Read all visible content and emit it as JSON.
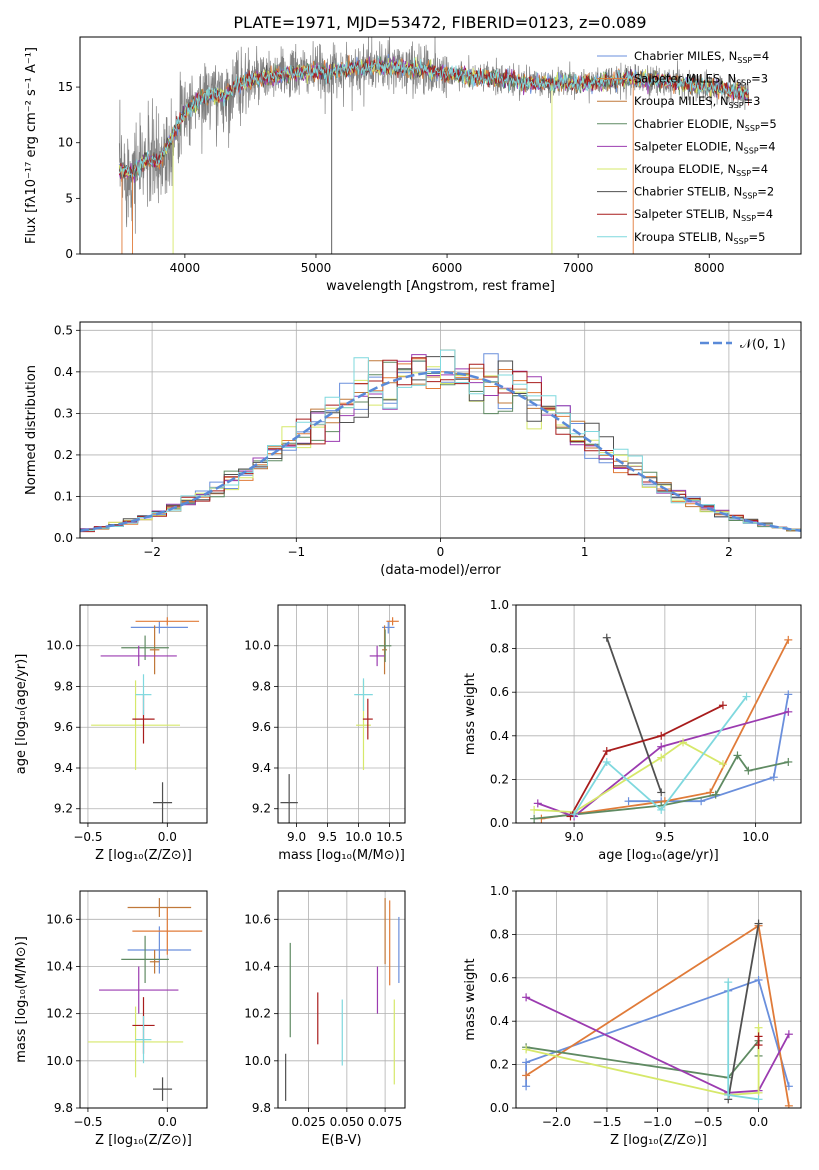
{
  "figure_title": "PLATE=1971, MJD=53472, FIBERID=0123, z=0.089",
  "colors": {
    "Chabrier MILES": "#6a8fdc",
    "Salpeter MILES": "#e07b39",
    "Kroupa MILES": "#c0783a",
    "Chabrier ELODIE": "#5f8a62",
    "Salpeter ELODIE": "#9b3bb0",
    "Kroupa ELODIE": "#d6e86a",
    "Chabrier STELIB": "#505050",
    "Salpeter STELIB": "#a81c1c",
    "Kroupa STELIB": "#7fd8de",
    "data": "#808080",
    "normal": "#5a8ad8"
  },
  "chart_data": [
    {
      "id": "spectrum",
      "type": "line",
      "xlabel": "wavelength [Angstrom, rest frame]",
      "ylabel": "Flux [fλ10⁻¹⁷ erg cm⁻² s⁻¹ A⁻¹]",
      "xlim": [
        3200,
        8700
      ],
      "ylim": [
        0,
        19.5
      ],
      "xticks": [
        4000,
        5000,
        6000,
        7000,
        8000
      ],
      "yticks": [
        0,
        5,
        10,
        15
      ],
      "legend_position": "top-right",
      "legend": [
        {
          "label": "Chabrier MILES, N",
          "sub": "SSP",
          "suffix": "=4",
          "model": "Chabrier MILES"
        },
        {
          "label": "Salpeter MILES, N",
          "sub": "SSP",
          "suffix": "=3",
          "model": "Salpeter MILES"
        },
        {
          "label": "Kroupa MILES, N",
          "sub": "SSP",
          "suffix": "=3",
          "model": "Kroupa MILES"
        },
        {
          "label": "Chabrier ELODIE, N",
          "sub": "SSP",
          "suffix": "=5",
          "model": "Chabrier ELODIE"
        },
        {
          "label": "Salpeter ELODIE, N",
          "sub": "SSP",
          "suffix": "=4",
          "model": "Salpeter ELODIE"
        },
        {
          "label": "Kroupa ELODIE, N",
          "sub": "SSP",
          "suffix": "=4",
          "model": "Kroupa ELODIE"
        },
        {
          "label": "Chabrier STELIB, N",
          "sub": "SSP",
          "suffix": "=2",
          "model": "Chabrier STELIB"
        },
        {
          "label": "Salpeter STELIB, N",
          "sub": "SSP",
          "suffix": "=4",
          "model": "Salpeter STELIB"
        },
        {
          "label": "Kroupa STELIB, N",
          "sub": "SSP",
          "suffix": "=5",
          "model": "Kroupa STELIB"
        }
      ],
      "continuum": [
        [
          3500,
          7.5
        ],
        [
          3600,
          7.2
        ],
        [
          3700,
          8.5
        ],
        [
          3800,
          8.2
        ],
        [
          3900,
          10.5
        ],
        [
          4000,
          12.8
        ],
        [
          4100,
          13.8
        ],
        [
          4200,
          14.3
        ],
        [
          4300,
          14.1
        ],
        [
          4400,
          15.2
        ],
        [
          4500,
          15.6
        ],
        [
          4600,
          15.8
        ],
        [
          4700,
          16.0
        ],
        [
          4800,
          16.2
        ],
        [
          4900,
          16.3
        ],
        [
          5000,
          16.4
        ],
        [
          5100,
          16.2
        ],
        [
          5200,
          16.6
        ],
        [
          5300,
          16.7
        ],
        [
          5400,
          16.8
        ],
        [
          5500,
          16.8
        ],
        [
          5600,
          16.8
        ],
        [
          5700,
          16.7
        ],
        [
          5800,
          16.6
        ],
        [
          5900,
          16.4
        ],
        [
          6000,
          16.2
        ],
        [
          6100,
          16.1
        ],
        [
          6200,
          15.9
        ],
        [
          6300,
          15.8
        ],
        [
          6400,
          15.7
        ],
        [
          6500,
          15.6
        ],
        [
          6600,
          15.4
        ],
        [
          6700,
          15.3
        ],
        [
          6800,
          15.3
        ],
        [
          6900,
          15.5
        ],
        [
          7000,
          15.3
        ],
        [
          7200,
          15.5
        ],
        [
          7400,
          15.8
        ],
        [
          7600,
          15.6
        ],
        [
          7800,
          15.3
        ],
        [
          8000,
          15.0
        ],
        [
          8200,
          14.6
        ],
        [
          8300,
          14.4
        ]
      ]
    },
    {
      "id": "residuals",
      "type": "histogram",
      "xlabel": "(data-model)/error",
      "ylabel": "Normed distribution",
      "xlim": [
        -2.5,
        2.5
      ],
      "ylim": [
        0,
        0.52
      ],
      "xticks": [
        -2,
        -1,
        0,
        1,
        2
      ],
      "yticks": [
        0.0,
        0.1,
        0.2,
        0.3,
        0.4,
        0.5
      ],
      "grid": true,
      "legend_position": "top-right",
      "legend": [
        {
          "label": "𝒩(0, 1)",
          "style": "dashed"
        }
      ],
      "bin_width": 0.1
    },
    {
      "id": "age_vs_Z",
      "type": "scatter",
      "xlabel": "Z [log₁₀(Z/Z⊙)]",
      "ylabel": "age  [log₁₀(age/yr)]",
      "xlim": [
        -0.55,
        0.25
      ],
      "ylim": [
        9.13,
        10.2
      ],
      "xticks": [
        -0.5,
        0.0
      ],
      "yticks": [
        9.2,
        9.4,
        9.6,
        9.8,
        10.0
      ],
      "grid": true,
      "points": [
        {
          "model": "Chabrier MILES",
          "x": -0.05,
          "xerr": 0.18,
          "y": 10.09,
          "yerr": 0.03
        },
        {
          "model": "Salpeter MILES",
          "x": 0.0,
          "xerr": 0.2,
          "y": 10.12,
          "yerr": 0.02
        },
        {
          "model": "Kroupa MILES",
          "x": -0.08,
          "xerr": 0.03,
          "y": 9.98,
          "yerr": 0.12
        },
        {
          "model": "Chabrier ELODIE",
          "x": -0.14,
          "xerr": 0.15,
          "y": 9.99,
          "yerr": 0.06
        },
        {
          "model": "Salpeter ELODIE",
          "x": -0.18,
          "xerr": 0.24,
          "y": 9.95,
          "yerr": 0.05
        },
        {
          "model": "Kroupa ELODIE",
          "x": -0.2,
          "xerr": 0.28,
          "y": 9.61,
          "yerr": 0.22
        },
        {
          "model": "Chabrier STELIB",
          "x": -0.03,
          "xerr": 0.06,
          "y": 9.23,
          "yerr": 0.1
        },
        {
          "model": "Salpeter STELIB",
          "x": -0.15,
          "xerr": 0.07,
          "y": 9.64,
          "yerr": 0.12
        },
        {
          "model": "Kroupa STELIB",
          "x": -0.15,
          "xerr": 0.05,
          "y": 9.76,
          "yerr": 0.1
        }
      ]
    },
    {
      "id": "age_vs_mass",
      "type": "scatter",
      "xlabel": "mass [log₁₀(M/M⊙)]",
      "xlim": [
        8.7,
        10.75
      ],
      "ylim": [
        9.13,
        10.2
      ],
      "xticks": [
        9.0,
        9.5,
        10.0,
        10.5
      ],
      "yticks": [
        9.2,
        9.4,
        9.6,
        9.8,
        10.0
      ],
      "grid": true,
      "points": [
        {
          "model": "Chabrier MILES",
          "x": 10.48,
          "xerr": 0.1,
          "y": 10.09,
          "yerr": 0.03
        },
        {
          "model": "Salpeter MILES",
          "x": 10.55,
          "xerr": 0.1,
          "y": 10.12,
          "yerr": 0.02
        },
        {
          "model": "Kroupa MILES",
          "x": 10.42,
          "xerr": 0.04,
          "y": 9.98,
          "yerr": 0.12
        },
        {
          "model": "Chabrier ELODIE",
          "x": 10.43,
          "xerr": 0.1,
          "y": 10.0,
          "yerr": 0.08
        },
        {
          "model": "Salpeter ELODIE",
          "x": 10.3,
          "xerr": 0.12,
          "y": 9.95,
          "yerr": 0.05
        },
        {
          "model": "Kroupa ELODIE",
          "x": 10.08,
          "xerr": 0.12,
          "y": 9.61,
          "yerr": 0.22
        },
        {
          "model": "Chabrier STELIB",
          "x": 8.88,
          "xerr": 0.14,
          "y": 9.23,
          "yerr": 0.14
        },
        {
          "model": "Salpeter STELIB",
          "x": 10.15,
          "xerr": 0.08,
          "y": 9.64,
          "yerr": 0.1
        },
        {
          "model": "Kroupa STELIB",
          "x": 10.08,
          "xerr": 0.15,
          "y": 9.76,
          "yerr": 0.08
        }
      ]
    },
    {
      "id": "massweight_vs_age",
      "type": "line",
      "xlabel": "age  [log₁₀(age/yr)]",
      "ylabel": "mass weight",
      "xlim": [
        8.68,
        10.25
      ],
      "ylim": [
        0,
        1.0
      ],
      "xticks": [
        9.0,
        9.5,
        10.0
      ],
      "yticks": [
        0.0,
        0.2,
        0.4,
        0.6,
        0.8,
        1.0
      ],
      "grid": true,
      "series": [
        {
          "model": "Chabrier MILES",
          "x": [
            9.3,
            9.48,
            9.7,
            10.1,
            10.18
          ],
          "y": [
            0.1,
            0.1,
            0.1,
            0.21,
            0.59
          ]
        },
        {
          "model": "Salpeter MILES",
          "x": [
            8.82,
            9.5,
            9.75,
            10.18
          ],
          "y": [
            0.02,
            0.1,
            0.14,
            0.84
          ]
        },
        {
          "model": "Chabrier ELODIE",
          "x": [
            8.78,
            9.48,
            9.78,
            9.9,
            9.96,
            10.18
          ],
          "y": [
            0.02,
            0.08,
            0.13,
            0.31,
            0.24,
            0.28
          ]
        },
        {
          "model": "Salpeter ELODIE",
          "x": [
            8.8,
            9.0,
            9.48,
            10.18
          ],
          "y": [
            0.09,
            0.03,
            0.35,
            0.51
          ]
        },
        {
          "model": "Kroupa ELODIE",
          "x": [
            8.78,
            9.0,
            9.48,
            9.6,
            9.82
          ],
          "y": [
            0.06,
            0.05,
            0.3,
            0.37,
            0.27
          ]
        },
        {
          "model": "Chabrier STELIB",
          "x": [
            9.18,
            9.48
          ],
          "y": [
            0.85,
            0.14
          ]
        },
        {
          "model": "Salpeter STELIB",
          "x": [
            8.98,
            9.18,
            9.48,
            9.82
          ],
          "y": [
            0.03,
            0.33,
            0.4,
            0.54
          ]
        },
        {
          "model": "Kroupa STELIB",
          "x": [
            9.0,
            9.18,
            9.48,
            9.95
          ],
          "y": [
            0.04,
            0.28,
            0.06,
            0.58
          ]
        }
      ]
    },
    {
      "id": "mass_vs_Z",
      "type": "scatter",
      "xlabel": "Z [log₁₀(Z/Z⊙)]",
      "ylabel": "mass [log₁₀(M/M⊙)]",
      "xlim": [
        -0.55,
        0.25
      ],
      "ylim": [
        9.8,
        10.72
      ],
      "xticks": [
        -0.5,
        0.0
      ],
      "yticks": [
        9.8,
        10.0,
        10.2,
        10.4,
        10.6
      ],
      "grid": true,
      "points": [
        {
          "model": "Chabrier MILES",
          "x": -0.05,
          "xerr": 0.2,
          "y": 10.47,
          "yerr": 0.1
        },
        {
          "model": "Salpeter MILES",
          "x": 0.0,
          "xerr": 0.22,
          "y": 10.55,
          "yerr": 0.1
        },
        {
          "model": "Kroupa MILES",
          "x": -0.08,
          "xerr": 0.03,
          "y": 10.42,
          "yerr": 0.05
        },
        {
          "model": "Chabrier ELODIE",
          "x": -0.14,
          "xerr": 0.15,
          "y": 10.43,
          "yerr": 0.1
        },
        {
          "model": "Salpeter ELODIE",
          "x": -0.18,
          "xerr": 0.25,
          "y": 10.3,
          "yerr": 0.1
        },
        {
          "model": "Kroupa ELODIE",
          "x": -0.2,
          "xerr": 0.3,
          "y": 10.08,
          "yerr": 0.15
        },
        {
          "model": "Chabrier STELIB",
          "x": -0.03,
          "xerr": 0.06,
          "y": 9.88,
          "yerr": 0.05
        },
        {
          "model": "Salpeter STELIB",
          "x": -0.15,
          "xerr": 0.07,
          "y": 10.15,
          "yerr": 0.12
        },
        {
          "model": "Kroupa STELIB",
          "x": -0.15,
          "xerr": 0.05,
          "y": 10.09,
          "yerr": 0.1
        },
        {
          "model": "Kroupa MILES",
          "x": -0.05,
          "xerr": 0.2,
          "y": 10.65,
          "yerr": 0.04
        }
      ]
    },
    {
      "id": "mass_vs_ebv",
      "type": "scatter",
      "xlabel": "E(B-V)",
      "xlim": [
        0.005,
        0.088
      ],
      "ylim": [
        9.8,
        10.72
      ],
      "xticks": [
        0.025,
        0.05,
        0.075
      ],
      "xticklabels": [
        "0.025",
        "0.050",
        "0.075"
      ],
      "yticks": [
        9.8,
        10.0,
        10.2,
        10.4,
        10.6
      ],
      "grid": true,
      "points": [
        {
          "model": "Chabrier MILES",
          "x": 0.084,
          "y": 10.47,
          "yerr": 0.14
        },
        {
          "model": "Salpeter MILES",
          "x": 0.078,
          "y": 10.5,
          "yerr": 0.18
        },
        {
          "model": "Kroupa MILES",
          "x": 0.075,
          "y": 10.55,
          "yerr": 0.14
        },
        {
          "model": "Chabrier ELODIE",
          "x": 0.013,
          "y": 10.3,
          "yerr": 0.2
        },
        {
          "model": "Salpeter ELODIE",
          "x": 0.07,
          "y": 10.3,
          "yerr": 0.1
        },
        {
          "model": "Kroupa ELODIE",
          "x": 0.081,
          "y": 10.08,
          "yerr": 0.18
        },
        {
          "model": "Chabrier STELIB",
          "x": 0.01,
          "y": 9.93,
          "yerr": 0.1
        },
        {
          "model": "Salpeter STELIB",
          "x": 0.031,
          "y": 10.18,
          "yerr": 0.11
        },
        {
          "model": "Kroupa STELIB",
          "x": 0.047,
          "y": 10.12,
          "yerr": 0.14
        }
      ]
    },
    {
      "id": "massweight_vs_Z",
      "type": "line",
      "xlabel": "Z [log₁₀(Z/Z⊙)]",
      "ylabel": "mass weight",
      "xlim": [
        -2.4,
        0.42
      ],
      "ylim": [
        0,
        1.0
      ],
      "xticks": [
        -2.0,
        -1.5,
        -1.0,
        -0.5,
        0.0
      ],
      "yticks": [
        0.0,
        0.2,
        0.4,
        0.6,
        0.8,
        1.0
      ],
      "grid": true,
      "series": [
        {
          "model": "Chabrier MILES",
          "x": [
            -2.3,
            -2.3,
            -0.3,
            0.0,
            0.3
          ],
          "y": [
            0.1,
            0.21,
            0.54,
            0.59,
            0.1
          ]
        },
        {
          "model": "Salpeter MILES",
          "x": [
            -2.3,
            0.0,
            0.3
          ],
          "y": [
            0.15,
            0.84,
            0.01
          ]
        },
        {
          "model": "Chabrier ELODIE",
          "x": [
            -2.3,
            -0.3,
            0.0,
            0.0
          ],
          "y": [
            0.28,
            0.14,
            0.31,
            0.24
          ]
        },
        {
          "model": "Salpeter ELODIE",
          "x": [
            -2.3,
            -0.3,
            0.0,
            0.3
          ],
          "y": [
            0.51,
            0.07,
            0.08,
            0.34
          ]
        },
        {
          "model": "Kroupa ELODIE",
          "x": [
            -2.3,
            -0.3,
            0.0,
            0.0
          ],
          "y": [
            0.27,
            0.06,
            0.07,
            0.37
          ]
        },
        {
          "model": "Chabrier STELIB",
          "x": [
            -0.3,
            0.0
          ],
          "y": [
            0.04,
            0.85
          ]
        },
        {
          "model": "Salpeter STELIB",
          "x": [
            0.0,
            0.0
          ],
          "y": [
            0.33,
            0.29
          ]
        },
        {
          "model": "Kroupa STELIB",
          "x": [
            -0.3,
            -0.3,
            0.0
          ],
          "y": [
            0.58,
            0.06,
            0.04
          ]
        }
      ]
    }
  ]
}
